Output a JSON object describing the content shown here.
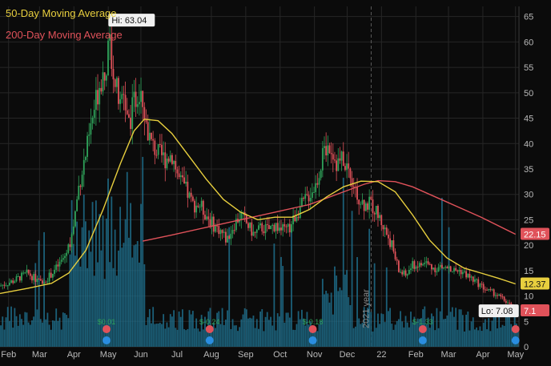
{
  "legend": {
    "ma50_label": "50-Day Moving Average",
    "ma200_label": "200-Day Moving Average"
  },
  "colors": {
    "background": "#0b0b0b",
    "grid": "#262626",
    "axis_text": "#b9b9b9",
    "candle_up": "#2fa35a",
    "candle_down": "#e0525a",
    "volume": "#1f6e8c",
    "ma50": "#e8cf3e",
    "ma200": "#e0525a",
    "label_dark": "#111111",
    "event_earnings_text": "#2fa35a",
    "event_dividend": "#e0525a",
    "event_q": "#2a8de0"
  },
  "chart_data": {
    "type": "candlestick",
    "title": "",
    "xlabel": "",
    "ylabel": "",
    "y_axis_position": "right",
    "ylim": [
      0,
      67
    ],
    "y_ticks": [
      0,
      5,
      10,
      15,
      20,
      25,
      30,
      35,
      40,
      45,
      50,
      55,
      60,
      65
    ],
    "x_ticks": [
      {
        "label": "Feb",
        "m": 0.25
      },
      {
        "label": "Mar",
        "m": 1.15
      },
      {
        "label": "Apr",
        "m": 2.15
      },
      {
        "label": "May",
        "m": 3.15
      },
      {
        "label": "Jun",
        "m": 4.1
      },
      {
        "label": "Jul",
        "m": 5.15
      },
      {
        "label": "Aug",
        "m": 6.15
      },
      {
        "label": "Sep",
        "m": 7.15
      },
      {
        "label": "Oct",
        "m": 8.15
      },
      {
        "label": "Nov",
        "m": 9.15
      },
      {
        "label": "Dec",
        "m": 10.1
      },
      {
        "label": "22",
        "m": 11.1
      },
      {
        "label": "Feb",
        "m": 12.1
      },
      {
        "label": "Mar",
        "m": 13.05
      },
      {
        "label": "Apr",
        "m": 14.05
      },
      {
        "label": "May",
        "m": 15.0
      }
    ],
    "year_marker": {
      "label": "2021 year",
      "m": 10.8
    },
    "x_domain": [
      0,
      15.1
    ],
    "price_path": [
      [
        0.0,
        12
      ],
      [
        0.4,
        13
      ],
      [
        0.8,
        14.5
      ],
      [
        1.2,
        12.5
      ],
      [
        1.45,
        14
      ],
      [
        1.7,
        16
      ],
      [
        1.9,
        18
      ],
      [
        2.1,
        22
      ],
      [
        2.3,
        32
      ],
      [
        2.5,
        38
      ],
      [
        2.7,
        45
      ],
      [
        2.9,
        52
      ],
      [
        3.1,
        56
      ],
      [
        3.2,
        60
      ],
      [
        3.35,
        52
      ],
      [
        3.5,
        47
      ],
      [
        3.6,
        50
      ],
      [
        3.75,
        44
      ],
      [
        3.9,
        48
      ],
      [
        4.1,
        52
      ],
      [
        4.25,
        44
      ],
      [
        4.4,
        40
      ],
      [
        4.6,
        38
      ],
      [
        4.8,
        37
      ],
      [
        5.0,
        38
      ],
      [
        5.2,
        33
      ],
      [
        5.4,
        31
      ],
      [
        5.6,
        28
      ],
      [
        5.8,
        28
      ],
      [
        6.0,
        26
      ],
      [
        6.2,
        24
      ],
      [
        6.4,
        23
      ],
      [
        6.6,
        21
      ],
      [
        6.8,
        24
      ],
      [
        7.0,
        26
      ],
      [
        7.2,
        24
      ],
      [
        7.4,
        22
      ],
      [
        7.6,
        23.5
      ],
      [
        7.8,
        23
      ],
      [
        8.0,
        24
      ],
      [
        8.2,
        23
      ],
      [
        8.4,
        23
      ],
      [
        8.6,
        26
      ],
      [
        8.8,
        28
      ],
      [
        9.0,
        30
      ],
      [
        9.2,
        32
      ],
      [
        9.4,
        38
      ],
      [
        9.6,
        40
      ],
      [
        9.8,
        36
      ],
      [
        10.0,
        37
      ],
      [
        10.2,
        34
      ],
      [
        10.4,
        30
      ],
      [
        10.6,
        28
      ],
      [
        10.8,
        28
      ],
      [
        11.0,
        26
      ],
      [
        11.2,
        23
      ],
      [
        11.4,
        20
      ],
      [
        11.6,
        15
      ],
      [
        11.8,
        14
      ],
      [
        12.0,
        16
      ],
      [
        12.2,
        16
      ],
      [
        12.4,
        16.5
      ],
      [
        12.6,
        15.5
      ],
      [
        12.8,
        15.5
      ],
      [
        13.0,
        15.5
      ],
      [
        13.2,
        15
      ],
      [
        13.4,
        15
      ],
      [
        13.6,
        14
      ],
      [
        13.8,
        13
      ],
      [
        14.0,
        12
      ],
      [
        14.2,
        11
      ],
      [
        14.4,
        10.5
      ],
      [
        14.6,
        9.5
      ],
      [
        14.8,
        8.5
      ],
      [
        15.0,
        7.1
      ]
    ],
    "ma50": [
      [
        0.0,
        10.5
      ],
      [
        0.8,
        11.5
      ],
      [
        1.5,
        12.5
      ],
      [
        2.0,
        14.5
      ],
      [
        2.5,
        19
      ],
      [
        3.0,
        27
      ],
      [
        3.5,
        36
      ],
      [
        3.9,
        42.5
      ],
      [
        4.2,
        44.8
      ],
      [
        4.6,
        44.5
      ],
      [
        5.0,
        42
      ],
      [
        5.5,
        37.5
      ],
      [
        6.0,
        33
      ],
      [
        6.5,
        29
      ],
      [
        7.0,
        26.5
      ],
      [
        7.5,
        25
      ],
      [
        8.0,
        25.5
      ],
      [
        8.5,
        25.5
      ],
      [
        9.0,
        27
      ],
      [
        9.5,
        29.5
      ],
      [
        10.0,
        31.5
      ],
      [
        10.5,
        32.6
      ],
      [
        11.0,
        32.5
      ],
      [
        11.5,
        30.5
      ],
      [
        12.0,
        26
      ],
      [
        12.5,
        21
      ],
      [
        13.0,
        17.5
      ],
      [
        13.5,
        15.5
      ],
      [
        14.0,
        14.5
      ],
      [
        14.5,
        13.5
      ],
      [
        15.0,
        12.37
      ]
    ],
    "ma200": [
      [
        4.15,
        20.8
      ],
      [
        5.0,
        22
      ],
      [
        6.0,
        23.5
      ],
      [
        7.0,
        25
      ],
      [
        8.0,
        26.5
      ],
      [
        9.0,
        28
      ],
      [
        10.0,
        30.5
      ],
      [
        10.6,
        32
      ],
      [
        11.0,
        32.7
      ],
      [
        11.5,
        32.5
      ],
      [
        12.0,
        31.5
      ],
      [
        13.0,
        28.5
      ],
      [
        14.0,
        25.5
      ],
      [
        15.0,
        22.15
      ]
    ],
    "volume_ylim": [
      0,
      67
    ],
    "annotations": {
      "high": {
        "text": "Hi: 63.04",
        "value": 63.04,
        "m": 3.2
      },
      "low": {
        "text": "Lo: 7.08",
        "value": 7.08,
        "m": 15.0
      },
      "right_axis_labels": [
        {
          "series": "200-Day Moving Average",
          "text": "22.15",
          "value": 22.15
        },
        {
          "series": "50-Day Moving Average",
          "text": "12.37",
          "value": 12.37
        },
        {
          "series": "price",
          "text": "7.1",
          "value": 7.1
        }
      ]
    },
    "events": [
      {
        "m": 3.1,
        "earnings": "$0.01"
      },
      {
        "m": 6.1,
        "earnings": "$-0.24"
      },
      {
        "m": 9.1,
        "earnings": "$-0.18"
      },
      {
        "m": 12.3,
        "earnings": "$-1.33"
      },
      {
        "m": 15.0,
        "earnings": ""
      }
    ]
  }
}
